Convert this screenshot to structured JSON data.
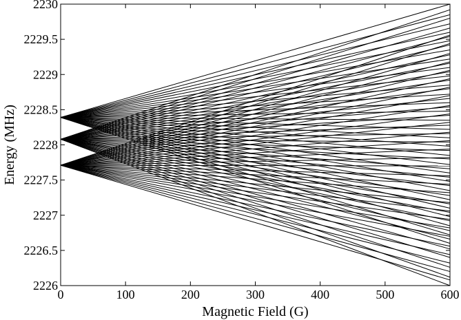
{
  "chart_data": {
    "type": "line",
    "xlabel": "Magnetic Field (G)",
    "ylabel": "Energy (MHz)",
    "xlim": [
      0,
      600
    ],
    "ylim": [
      2226,
      2230
    ],
    "xticks": [
      0,
      100,
      200,
      300,
      400,
      500,
      600
    ],
    "xtick_labels": [
      "0",
      "100",
      "200",
      "300",
      "400",
      "500",
      "600"
    ],
    "yticks": [
      2226,
      2226.5,
      2227,
      2227.5,
      2228,
      2228.5,
      2229,
      2229.5,
      2230
    ],
    "ytick_labels": [
      "2226",
      "2226.5",
      "2227",
      "2227.5",
      "2228",
      "2228.5",
      "2229",
      "2229.5",
      "2230"
    ],
    "grid": false,
    "line_color": "#000000",
    "x_end": 600,
    "families": [
      {
        "y_at_zero_field": 2228.39,
        "y_at_600G": [
          2230.0,
          2229.85,
          2229.72,
          2229.6,
          2229.48,
          2229.35,
          2229.22,
          2229.1,
          2228.98,
          2228.85,
          2228.72,
          2228.6,
          2228.48,
          2228.35,
          2228.22,
          2228.1,
          2227.98,
          2227.85,
          2227.72,
          2227.6,
          2227.48,
          2227.35,
          2227.22,
          2227.1,
          2226.98,
          2226.85,
          2226.72,
          2226.6
        ]
      },
      {
        "y_at_zero_field": 2228.08,
        "y_at_600G": [
          2229.92,
          2229.8,
          2229.66,
          2229.54,
          2229.42,
          2229.28,
          2229.16,
          2229.04,
          2228.92,
          2228.8,
          2228.66,
          2228.54,
          2228.42,
          2228.28,
          2228.16,
          2228.04,
          2227.92,
          2227.8,
          2227.66,
          2227.54,
          2227.42,
          2227.28,
          2227.16,
          2227.04,
          2226.92,
          2226.78,
          2226.66,
          2226.52,
          2226.4,
          2226.26,
          2226.12,
          2226.0
        ]
      },
      {
        "y_at_zero_field": 2227.71,
        "y_at_600G": [
          2229.56,
          2229.44,
          2229.3,
          2229.18,
          2229.06,
          2228.94,
          2228.82,
          2228.7,
          2228.56,
          2228.44,
          2228.32,
          2228.18,
          2228.06,
          2227.94,
          2227.82,
          2227.7,
          2227.56,
          2227.44,
          2227.32,
          2227.18,
          2227.06,
          2226.94,
          2226.82,
          2226.7,
          2226.56,
          2226.44,
          2226.32,
          2226.2,
          2226.08
        ]
      }
    ]
  }
}
